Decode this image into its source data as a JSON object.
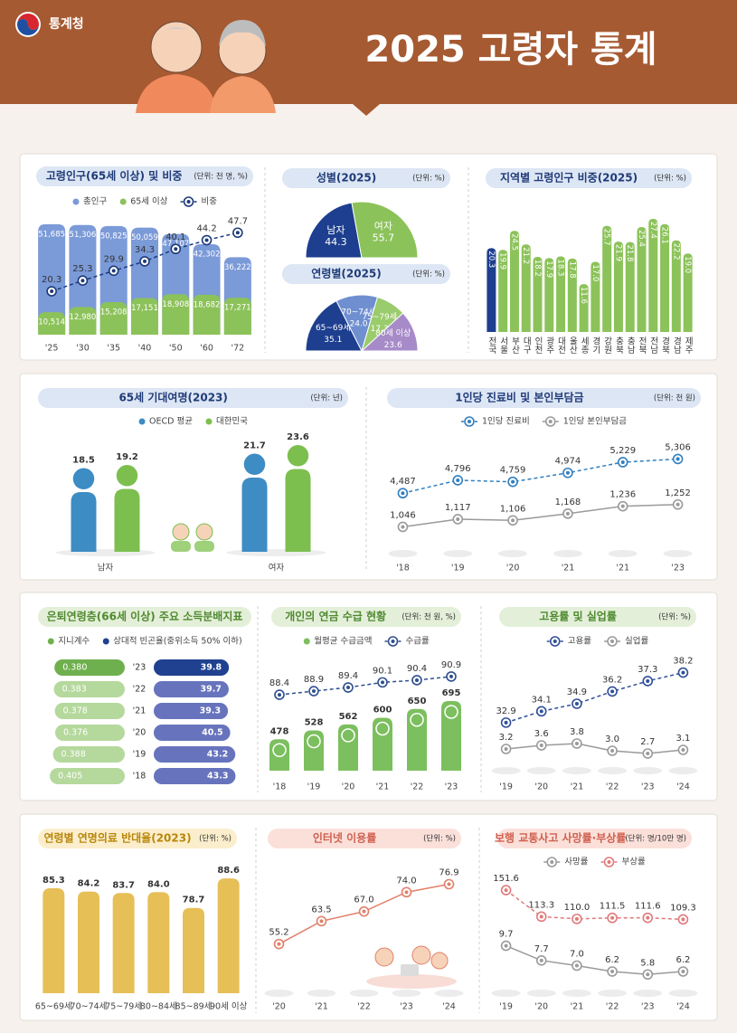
{
  "header": {
    "logo": "통계청",
    "title": "2025 고령자 통계"
  },
  "chart_data": [
    {
      "type": "bar",
      "title": "고령인구(65세 이상) 및 비중",
      "unit": "(단위: 천 명, %)",
      "barmode": "overlay",
      "categories": [
        "'25",
        "'30",
        "'35",
        "'40",
        "'50",
        "'60",
        "'72"
      ],
      "series": [
        {
          "name": "총인구",
          "type": "bar",
          "color": "#7b9ad8",
          "values": [
            51685,
            51306,
            50825,
            50059,
            47107,
            42302,
            36222
          ],
          "value_labels": [
            "51,685",
            "51,306",
            "50,825",
            "50,059",
            "47,107",
            "42,302",
            "36,222"
          ]
        },
        {
          "name": "65세 이상",
          "type": "bar",
          "color": "#8cc25a",
          "values": [
            10514,
            12980,
            15208,
            17151,
            18908,
            18682,
            17271
          ],
          "value_labels": [
            "10,514",
            "12,980",
            "15,208",
            "17,151",
            "18,908",
            "18,682",
            "17,271"
          ]
        },
        {
          "name": "비중",
          "type": "line",
          "axis": "y2",
          "color": "#1d3a7a",
          "dashed": true,
          "values": [
            20.3,
            25.3,
            29.9,
            34.3,
            40.1,
            44.2,
            47.7
          ]
        }
      ],
      "ylim": [
        0,
        55000
      ],
      "y2lim": [
        0,
        55
      ]
    },
    {
      "type": "pie",
      "shape": "half",
      "title": "성별(2025)",
      "unit": "(단위: %)",
      "categories": [
        "남자",
        "여자"
      ],
      "values": [
        44.3,
        55.7
      ],
      "colors": [
        "#1e3f8f",
        "#8cc25a"
      ]
    },
    {
      "type": "pie",
      "shape": "half",
      "title": "연령별(2025)",
      "unit": "(단위: %)",
      "categories": [
        "65~69세",
        "70~74세",
        "75~79세",
        "80세 이상"
      ],
      "values": [
        35.1,
        24,
        17.3,
        23.6
      ],
      "value_labels": [
        "35.1",
        "24.0",
        "17.3",
        "23.6"
      ],
      "colors": [
        "#1e3f8f",
        "#6f8fd0",
        "#9acb6c",
        "#a78bc9"
      ]
    },
    {
      "type": "bar",
      "title": "지역별 고령인구 비중(2025)",
      "unit": "(단위: %)",
      "categories": [
        "전국",
        "서울",
        "부산",
        "대구",
        "인천",
        "광주",
        "대전",
        "울산",
        "세종",
        "경기",
        "강원",
        "충북",
        "충남",
        "전북",
        "전남",
        "경북",
        "경남",
        "제주"
      ],
      "values": [
        20.3,
        19.9,
        24.5,
        21.2,
        18.2,
        17.9,
        18.3,
        17.8,
        11.6,
        17,
        25.7,
        21.9,
        21.8,
        25.4,
        27.4,
        26.1,
        22.2,
        19
      ],
      "value_labels": [
        "20.3",
        "19.9",
        "24.5",
        "21.2",
        "18.2",
        "17.9",
        "18.3",
        "17.8",
        "11.6",
        "17.0",
        "25.7",
        "21.9",
        "21.8",
        "25.4",
        "27.4",
        "26.1",
        "22.2",
        "19.0"
      ],
      "colors": [
        "#1e3f8f",
        "#8cc25a",
        "#8cc25a",
        "#8cc25a",
        "#8cc25a",
        "#8cc25a",
        "#8cc25a",
        "#8cc25a",
        "#8cc25a",
        "#8cc25a",
        "#8cc25a",
        "#8cc25a",
        "#8cc25a",
        "#8cc25a",
        "#8cc25a",
        "#8cc25a",
        "#8cc25a",
        "#8cc25a"
      ],
      "ylim": [
        0,
        30
      ]
    },
    {
      "type": "bar",
      "title": "65세 기대여명(2023)",
      "unit": "(단위: 년)",
      "barmode": "group",
      "bar_shape": "person",
      "categories": [
        "남자",
        "여자"
      ],
      "series": [
        {
          "name": "OECD 평균",
          "color": "#3d8cc4",
          "values": [
            18.5,
            21.7
          ]
        },
        {
          "name": "대한민국",
          "color": "#7cbf4f",
          "values": [
            19.2,
            23.6
          ]
        }
      ],
      "ylim": [
        0,
        25
      ]
    },
    {
      "type": "line",
      "title": "1인당 진료비 및 본인부담금",
      "unit": "(단위: 천 원)",
      "categories": [
        "'18",
        "'19",
        "'20",
        "'21",
        "'21",
        "'23"
      ],
      "series": [
        {
          "name": "1인당 진료비",
          "color": "#2f7fc0",
          "dashed": true,
          "values": [
            4487,
            4796,
            4759,
            4974,
            5229,
            5306
          ],
          "value_labels": [
            "4,487",
            "4,796",
            "4,759",
            "4,974",
            "5,229",
            "5,306"
          ]
        },
        {
          "name": "1인당 본인부담금",
          "color": "#9a9a9a",
          "axis": "y2",
          "values": [
            1046,
            1117,
            1106,
            1168,
            1236,
            1252
          ],
          "value_labels": [
            "1,046",
            "1,117",
            "1,106",
            "1,168",
            "1,236",
            "1,252"
          ]
        }
      ],
      "ylim": [
        3300,
        5900
      ],
      "y2lim": [
        900,
        1900
      ]
    },
    {
      "type": "diverging_bar",
      "title": "은퇴연령층(66세 이상) 주요 소득분배지표",
      "categories": [
        "'23",
        "'22",
        "'21",
        "'20",
        "'19",
        "'18"
      ],
      "series": [
        {
          "name": "지니계수",
          "values": [
            0.38,
            0.383,
            0.378,
            0.376,
            0.388,
            0.405
          ],
          "value_labels": [
            "0.380",
            "0.383",
            "0.378",
            "0.376",
            "0.388",
            "0.405"
          ],
          "colors": [
            "#6fb04e",
            "#b5d89c",
            "#b5d89c",
            "#b5d89c",
            "#b5d89c",
            "#b5d89c"
          ]
        },
        {
          "name": "상대적 빈곤율(중위소득 50% 이하)",
          "axis": "x2",
          "values": [
            39.8,
            39.7,
            39.3,
            40.5,
            43.2,
            43.3
          ],
          "colors": [
            "#20418f",
            "#6774bd",
            "#6774bd",
            "#6774bd",
            "#6774bd",
            "#6774bd"
          ]
        }
      ],
      "xlim": [
        0,
        0.42
      ],
      "x2lim": [
        0,
        45
      ]
    },
    {
      "type": "bar",
      "title": "개인의 연금 수급 현황",
      "unit": "(단위: 천 원, %)",
      "categories": [
        "'18",
        "'19",
        "'20",
        "'21",
        "'22",
        "'23"
      ],
      "series": [
        {
          "name": "월평균 수급금액",
          "type": "bar",
          "color": "#7cbf5e",
          "values": [
            478,
            528,
            562,
            600,
            650,
            695
          ]
        },
        {
          "name": "수급률",
          "type": "line",
          "axis": "y2",
          "color": "#2f4f8f",
          "dashed": true,
          "values": [
            88.4,
            88.9,
            89.4,
            90.1,
            90.4,
            90.9
          ]
        }
      ],
      "ylim": [
        300,
        900
      ],
      "y2lim": [
        78,
        92.5
      ]
    },
    {
      "type": "line",
      "title": "고용률 및 실업률",
      "unit": "(단위: %)",
      "categories": [
        "'19",
        "'20",
        "'21",
        "'22",
        "'23",
        "'24"
      ],
      "series": [
        {
          "name": "고용률",
          "color": "#2f4f9a",
          "dashed": true,
          "values": [
            32.9,
            34.1,
            34.9,
            36.2,
            37.3,
            38.2
          ]
        },
        {
          "name": "실업률",
          "color": "#9a9a9a",
          "axis": "y2",
          "values": [
            3.2,
            3.6,
            3.8,
            3,
            2.7,
            3.1
          ],
          "value_labels": [
            "3.2",
            "3.6",
            "3.8",
            "3.0",
            "2.7",
            "3.1"
          ]
        }
      ],
      "ylim": [
        28,
        39.5
      ],
      "y2lim": [
        1,
        13
      ]
    },
    {
      "type": "bar",
      "title": "연령별 연명의료 반대율(2023)",
      "unit": "(단위: %)",
      "categories": [
        "65~69세",
        "70~74세",
        "75~79세",
        "80~84세",
        "85~89세",
        "90세 이상"
      ],
      "values": [
        85.3,
        84.2,
        83.7,
        84,
        78.7,
        88.6
      ],
      "value_labels": [
        "85.3",
        "84.2",
        "83.7",
        "84.0",
        "78.7",
        "88.6"
      ],
      "color": "#e6bf57",
      "ylim": [
        50,
        92
      ]
    },
    {
      "type": "line",
      "title": "인터넷 이용률",
      "unit": "(단위: %)",
      "categories": [
        "'20",
        "'21",
        "'22",
        "'23",
        "'24"
      ],
      "values": [
        55.2,
        63.5,
        67,
        74,
        76.9
      ],
      "value_labels": [
        "55.2",
        "63.5",
        "67.0",
        "74.0",
        "76.9"
      ],
      "color": "#e0806a",
      "ylim": [
        40,
        81
      ]
    },
    {
      "type": "line",
      "title": "보행 교통사고 사망률·부상률",
      "unit": "(단위: 명/10만 명)",
      "categories": [
        "'19",
        "'20",
        "'21",
        "'22",
        "'23",
        "'24"
      ],
      "series": [
        {
          "name": "사망률",
          "color": "#9a9a9a",
          "axis": "y2",
          "values": [
            9.7,
            7.7,
            7,
            6.2,
            5.8,
            6.2
          ],
          "value_labels": [
            "9.7",
            "7.7",
            "7.0",
            "6.2",
            "5.8",
            "6.2"
          ]
        },
        {
          "name": "부상률",
          "color": "#e07a7a",
          "dashed": true,
          "values": [
            151.6,
            113.3,
            110,
            111.5,
            111.6,
            109.3
          ],
          "value_labels": [
            "151.6",
            "113.3",
            "110.0",
            "111.5",
            "111.6",
            "109.3"
          ]
        }
      ],
      "ylim": [
        0,
        170
      ],
      "y2lim": [
        3,
        19
      ]
    }
  ]
}
